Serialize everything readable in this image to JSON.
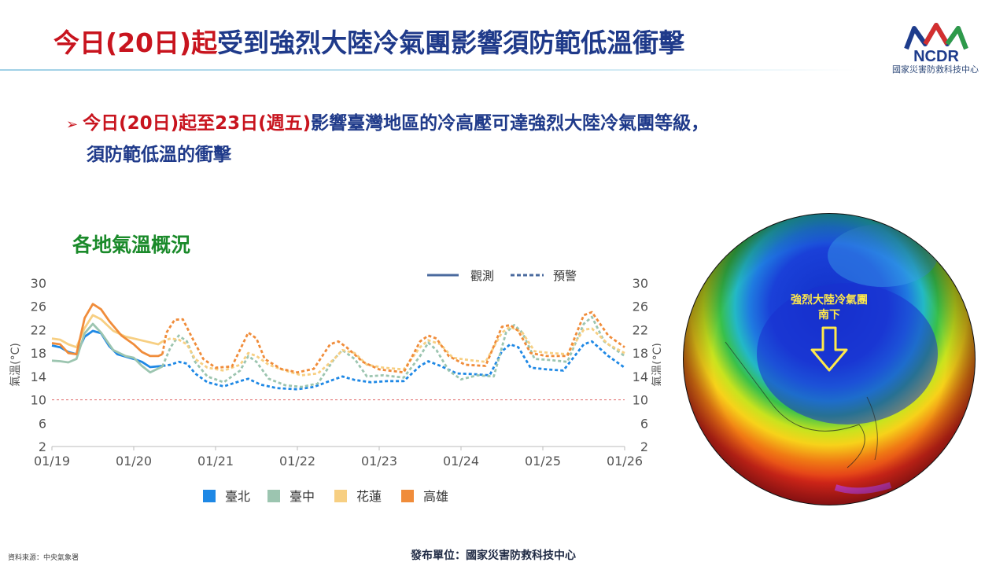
{
  "header": {
    "title_red": "今日(20日)起",
    "title_blue": "受到強烈大陸冷氣團影響須防範低溫衝擊"
  },
  "logo": {
    "acronym": "NCDR",
    "org_name": "國家災害防救科技中心"
  },
  "bullet": {
    "part1_red": "今日(20日)起",
    "part2_blue": "至",
    "part3_red": "23日(週五)",
    "part4_blue": "影響臺灣地區的冷高壓可達強烈大陸冷氣團等級，",
    "line2": "須防範低溫的衝擊"
  },
  "section_title": "各地氣溫概況",
  "globe": {
    "annotation_line1": "強烈大陸冷氣團",
    "annotation_line2": "南下"
  },
  "footer": {
    "source": "資料來源：中央氣象署",
    "publisher": "發布單位：國家災害防救科技中心"
  },
  "colors": {
    "taipei": "#1e88e5",
    "taichung": "#9cc5b0",
    "hualien": "#f7cf82",
    "kaohsiung": "#f08c3a",
    "title_red": "#c8141e",
    "title_blue": "#1f3a8a",
    "section_green": "#1a8a2a"
  },
  "chart_data": {
    "type": "line",
    "ylabel": "氣溫(°C)",
    "ylim": [
      2,
      30
    ],
    "yticks": [
      2,
      6,
      10,
      14,
      18,
      22,
      26,
      30
    ],
    "xlim": [
      0,
      7
    ],
    "x_tick_labels": [
      "01/19",
      "01/20",
      "01/21",
      "01/22",
      "01/23",
      "01/24",
      "01/25",
      "01/26"
    ],
    "reference_line": 10,
    "style_legend": {
      "observed": "觀測",
      "forecast": "預警"
    },
    "series": [
      {
        "name": "臺北",
        "color_key": "taipei",
        "observed": [
          [
            0,
            19.3
          ],
          [
            0.1,
            19.0
          ],
          [
            0.2,
            18.2
          ],
          [
            0.3,
            17.8
          ],
          [
            0.4,
            20.8
          ],
          [
            0.5,
            21.8
          ],
          [
            0.6,
            21.4
          ],
          [
            0.7,
            19.2
          ],
          [
            0.8,
            17.8
          ],
          [
            0.9,
            17.4
          ],
          [
            1.0,
            17.0
          ],
          [
            1.1,
            16.5
          ],
          [
            1.2,
            15.6
          ],
          [
            1.35,
            15.8
          ]
        ],
        "forecast": [
          [
            1.35,
            15.8
          ],
          [
            1.45,
            16.0
          ],
          [
            1.55,
            16.5
          ],
          [
            1.65,
            16.2
          ],
          [
            1.75,
            14.5
          ],
          [
            1.9,
            13.0
          ],
          [
            2.1,
            12.3
          ],
          [
            2.3,
            13.2
          ],
          [
            2.4,
            13.6
          ],
          [
            2.55,
            12.6
          ],
          [
            2.75,
            12.0
          ],
          [
            3.0,
            11.8
          ],
          [
            3.2,
            12.2
          ],
          [
            3.45,
            13.5
          ],
          [
            3.55,
            14.0
          ],
          [
            3.7,
            13.4
          ],
          [
            3.9,
            13.0
          ],
          [
            4.1,
            13.2
          ],
          [
            4.3,
            13.2
          ],
          [
            4.5,
            15.8
          ],
          [
            4.6,
            16.6
          ],
          [
            4.75,
            15.8
          ],
          [
            4.95,
            14.5
          ],
          [
            5.15,
            14.4
          ],
          [
            5.35,
            14.2
          ],
          [
            5.5,
            18.3
          ],
          [
            5.6,
            19.5
          ],
          [
            5.7,
            19.0
          ],
          [
            5.85,
            15.5
          ],
          [
            6.05,
            15.2
          ],
          [
            6.25,
            15.0
          ],
          [
            6.5,
            19.5
          ],
          [
            6.6,
            20.0
          ],
          [
            6.8,
            17.5
          ],
          [
            7.0,
            15.5
          ]
        ]
      },
      {
        "name": "臺中",
        "color_key": "taichung",
        "observed": [
          [
            0,
            16.7
          ],
          [
            0.1,
            16.6
          ],
          [
            0.2,
            16.4
          ],
          [
            0.3,
            17.0
          ],
          [
            0.4,
            21.4
          ],
          [
            0.5,
            23.0
          ],
          [
            0.6,
            21.5
          ],
          [
            0.75,
            18.5
          ],
          [
            0.9,
            17.5
          ],
          [
            1.0,
            17.2
          ],
          [
            1.1,
            15.8
          ],
          [
            1.2,
            14.7
          ],
          [
            1.35,
            15.7
          ]
        ],
        "forecast": [
          [
            1.35,
            15.7
          ],
          [
            1.45,
            19.0
          ],
          [
            1.55,
            21.0
          ],
          [
            1.65,
            20.0
          ],
          [
            1.75,
            16.5
          ],
          [
            1.9,
            14.0
          ],
          [
            2.1,
            13.0
          ],
          [
            2.3,
            15.0
          ],
          [
            2.4,
            17.5
          ],
          [
            2.5,
            16.5
          ],
          [
            2.65,
            13.6
          ],
          [
            2.85,
            12.5
          ],
          [
            3.05,
            12.2
          ],
          [
            3.25,
            12.8
          ],
          [
            3.45,
            17.0
          ],
          [
            3.55,
            18.5
          ],
          [
            3.7,
            17.0
          ],
          [
            3.85,
            14.0
          ],
          [
            4.05,
            14.2
          ],
          [
            4.3,
            13.8
          ],
          [
            4.5,
            17.5
          ],
          [
            4.6,
            19.8
          ],
          [
            4.7,
            18.5
          ],
          [
            4.85,
            15.0
          ],
          [
            5.0,
            13.5
          ],
          [
            5.2,
            14.2
          ],
          [
            5.4,
            14.0
          ],
          [
            5.55,
            21.5
          ],
          [
            5.65,
            22.8
          ],
          [
            5.75,
            21.5
          ],
          [
            5.9,
            17.0
          ],
          [
            6.1,
            16.8
          ],
          [
            6.3,
            16.5
          ],
          [
            6.5,
            23.0
          ],
          [
            6.6,
            24.2
          ],
          [
            6.75,
            20.0
          ],
          [
            7.0,
            17.5
          ]
        ]
      },
      {
        "name": "花蓮",
        "color_key": "hualien",
        "observed": [
          [
            0,
            20.5
          ],
          [
            0.1,
            20.3
          ],
          [
            0.2,
            19.5
          ],
          [
            0.3,
            19.0
          ],
          [
            0.4,
            22.3
          ],
          [
            0.5,
            24.5
          ],
          [
            0.6,
            23.8
          ],
          [
            0.75,
            21.8
          ],
          [
            0.9,
            20.8
          ],
          [
            1.0,
            20.5
          ],
          [
            1.15,
            20.0
          ],
          [
            1.3,
            19.5
          ],
          [
            1.35,
            20.0
          ]
        ],
        "forecast": [
          [
            1.35,
            20.0
          ],
          [
            1.45,
            20.5
          ],
          [
            1.55,
            20.3
          ],
          [
            1.65,
            19.5
          ],
          [
            1.75,
            17.0
          ],
          [
            1.9,
            15.5
          ],
          [
            2.1,
            15.0
          ],
          [
            2.3,
            16.0
          ],
          [
            2.4,
            18.0
          ],
          [
            2.5,
            17.5
          ],
          [
            2.65,
            16.0
          ],
          [
            2.85,
            15.0
          ],
          [
            3.05,
            14.2
          ],
          [
            3.25,
            14.5
          ],
          [
            3.45,
            17.0
          ],
          [
            3.55,
            18.5
          ],
          [
            3.7,
            18.0
          ],
          [
            3.85,
            16.0
          ],
          [
            4.05,
            15.5
          ],
          [
            4.3,
            15.2
          ],
          [
            4.5,
            19.0
          ],
          [
            4.6,
            20.2
          ],
          [
            4.75,
            19.5
          ],
          [
            4.9,
            17.2
          ],
          [
            5.1,
            16.8
          ],
          [
            5.3,
            16.5
          ],
          [
            5.5,
            21.5
          ],
          [
            5.6,
            22.5
          ],
          [
            5.75,
            21.5
          ],
          [
            5.9,
            18.3
          ],
          [
            6.1,
            18.0
          ],
          [
            6.3,
            17.8
          ],
          [
            6.5,
            22.0
          ],
          [
            6.6,
            22.2
          ],
          [
            6.8,
            19.5
          ],
          [
            7.0,
            18.0
          ]
        ]
      },
      {
        "name": "高雄",
        "color_key": "kaohsiung",
        "observed": [
          [
            0,
            19.7
          ],
          [
            0.1,
            19.5
          ],
          [
            0.2,
            18.0
          ],
          [
            0.3,
            17.8
          ],
          [
            0.4,
            24.0
          ],
          [
            0.5,
            26.4
          ],
          [
            0.6,
            25.5
          ],
          [
            0.7,
            23.5
          ],
          [
            0.85,
            21.0
          ],
          [
            1.0,
            19.5
          ],
          [
            1.1,
            18.2
          ],
          [
            1.2,
            17.5
          ],
          [
            1.3,
            17.5
          ],
          [
            1.35,
            17.8
          ]
        ],
        "forecast": [
          [
            1.35,
            17.8
          ],
          [
            1.4,
            21.5
          ],
          [
            1.5,
            23.7
          ],
          [
            1.6,
            23.8
          ],
          [
            1.7,
            21.0
          ],
          [
            1.85,
            17.0
          ],
          [
            2.0,
            15.5
          ],
          [
            2.2,
            15.7
          ],
          [
            2.4,
            21.5
          ],
          [
            2.5,
            20.5
          ],
          [
            2.6,
            17.0
          ],
          [
            2.8,
            15.3
          ],
          [
            3.0,
            14.7
          ],
          [
            3.2,
            15.3
          ],
          [
            3.4,
            19.5
          ],
          [
            3.5,
            20.0
          ],
          [
            3.6,
            19.0
          ],
          [
            3.8,
            16.5
          ],
          [
            4.0,
            15.2
          ],
          [
            4.3,
            14.7
          ],
          [
            4.5,
            20.0
          ],
          [
            4.6,
            21.0
          ],
          [
            4.7,
            20.5
          ],
          [
            4.85,
            17.5
          ],
          [
            5.05,
            16.0
          ],
          [
            5.3,
            15.8
          ],
          [
            5.5,
            22.5
          ],
          [
            5.6,
            22.8
          ],
          [
            5.7,
            21.8
          ],
          [
            5.85,
            18.0
          ],
          [
            6.05,
            17.5
          ],
          [
            6.3,
            17.5
          ],
          [
            6.5,
            24.5
          ],
          [
            6.6,
            25.0
          ],
          [
            6.8,
            21.0
          ],
          [
            7.0,
            19.0
          ]
        ]
      }
    ]
  }
}
